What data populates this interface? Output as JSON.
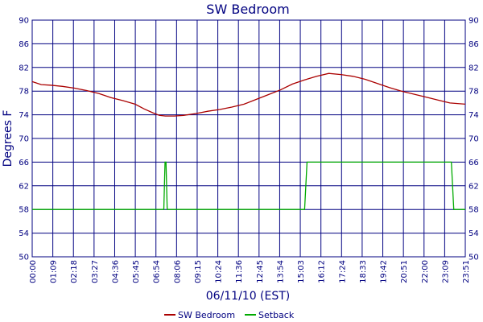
{
  "chart_data": {
    "type": "line",
    "title": "SW Bedroom",
    "xlabel": "06/11/10 (EST)",
    "ylabel": "Degrees F",
    "x_unit": "minutes",
    "xlim": [
      0,
      1431
    ],
    "ylim": [
      50,
      90
    ],
    "y_ticks": [
      50,
      54,
      58,
      62,
      66,
      70,
      74,
      78,
      82,
      86,
      90
    ],
    "x_tick_labels": [
      "00:00",
      "01:09",
      "02:18",
      "03:27",
      "04:36",
      "05:45",
      "06:54",
      "08:06",
      "09:15",
      "10:24",
      "11:36",
      "12:45",
      "13:54",
      "15:03",
      "16:12",
      "17:24",
      "18:33",
      "19:42",
      "20:51",
      "22:00",
      "23:09",
      "23:51"
    ],
    "grid": true,
    "legend_position": "bottom",
    "series": [
      {
        "name": "SW Bedroom",
        "color": "#aa0000",
        "x": [
          0,
          30,
          60,
          100,
          140,
          180,
          220,
          260,
          300,
          340,
          370,
          400,
          420,
          440,
          470,
          500,
          540,
          580,
          620,
          660,
          700,
          740,
          780,
          820,
          860,
          900,
          940,
          980,
          1020,
          1060,
          1100,
          1140,
          1180,
          1220,
          1260,
          1300,
          1340,
          1380,
          1431
        ],
        "y": [
          79.6,
          79.1,
          79.0,
          78.8,
          78.5,
          78.1,
          77.6,
          76.9,
          76.4,
          75.8,
          75.0,
          74.3,
          73.9,
          73.8,
          73.8,
          73.9,
          74.2,
          74.6,
          74.9,
          75.3,
          75.8,
          76.6,
          77.4,
          78.2,
          79.2,
          79.9,
          80.5,
          81.0,
          80.8,
          80.5,
          80.0,
          79.3,
          78.6,
          78.0,
          77.5,
          77.0,
          76.5,
          76.0,
          75.8
        ]
      },
      {
        "name": "Setback",
        "color": "#00aa00",
        "x": [
          0,
          435,
          439,
          442,
          446,
          450,
          900,
          908,
          1385,
          1393,
          1431
        ],
        "y": [
          58,
          58,
          66,
          66,
          58,
          58,
          58,
          66,
          66,
          58,
          58
        ]
      }
    ]
  }
}
